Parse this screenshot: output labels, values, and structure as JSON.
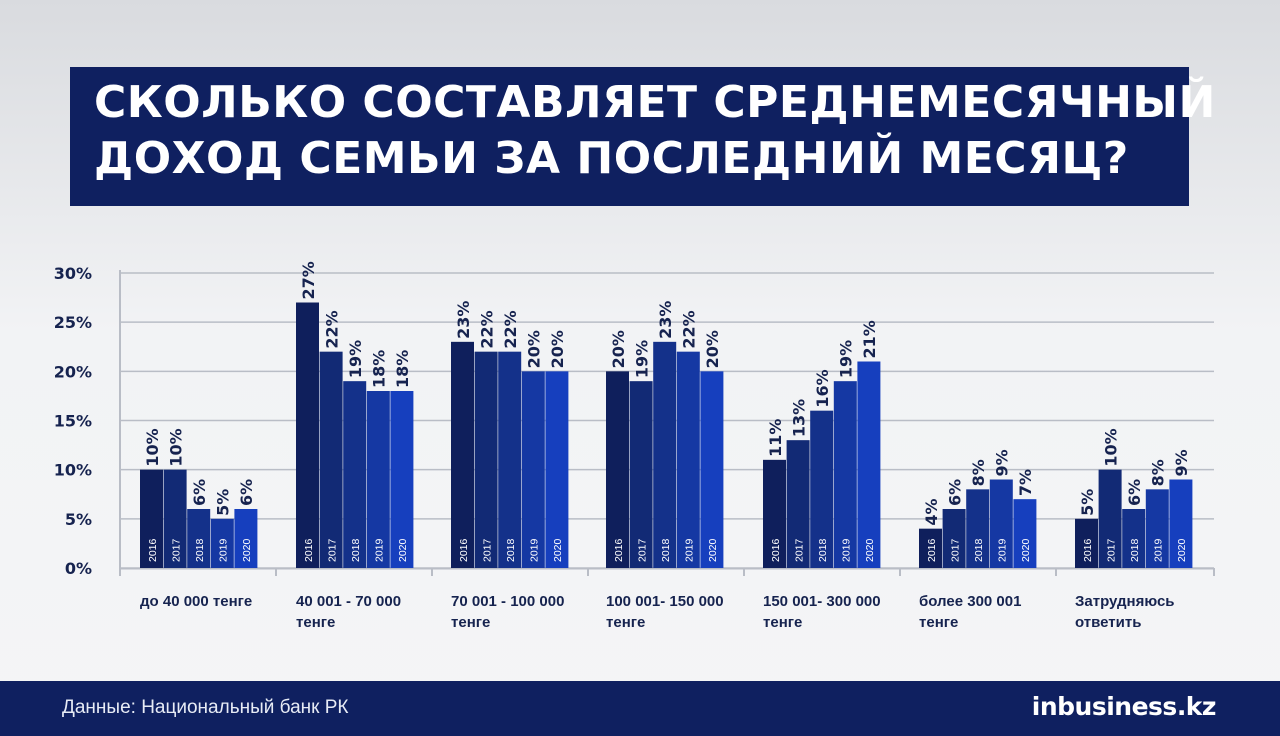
{
  "title": {
    "line1": "СКОЛЬКО СОСТАВЛЯЕТ СРЕДНЕМЕСЯЧНЫЙ",
    "line2": "ДОХОД СЕМЬИ ЗА ПОСЛЕДНИЙ МЕСЯЦ?"
  },
  "footer": {
    "source": "Данные: Национальный банк РК",
    "logo_in": "in",
    "logo_rest": "business.kz"
  },
  "colors": {
    "title_bg": "#0f2060",
    "axis_text": "#16234f",
    "grid": "#b9bdc6",
    "bar_2016": "#0f1f5c",
    "bar_2017": "#122a75",
    "bar_2018": "#14318a",
    "bar_2019": "#1538a3",
    "bar_2020": "#163fbe"
  },
  "chart_data": {
    "type": "bar",
    "ylim": [
      0,
      30
    ],
    "y_ticks": [
      "0%",
      "5%",
      "10%",
      "15%",
      "20%",
      "25%",
      "30%"
    ],
    "grid": true,
    "years": [
      "2016",
      "2017",
      "2018",
      "2019",
      "2020"
    ],
    "categories": [
      {
        "label": [
          "до 40 000 тенге"
        ],
        "values": [
          10,
          10,
          6,
          5,
          6
        ]
      },
      {
        "label": [
          "40 001 - 70 000",
          "тенге"
        ],
        "values": [
          27,
          22,
          19,
          18,
          18
        ]
      },
      {
        "label": [
          "70 001 - 100 000",
          "тенге"
        ],
        "values": [
          23,
          22,
          22,
          20,
          20
        ]
      },
      {
        "label": [
          "100 001- 150 000",
          "тенге"
        ],
        "values": [
          20,
          19,
          23,
          22,
          20
        ]
      },
      {
        "label": [
          "150 001- 300 000",
          "тенге"
        ],
        "values": [
          11,
          13,
          16,
          19,
          21
        ]
      },
      {
        "label": [
          "более 300 001",
          "тенге"
        ],
        "values": [
          4,
          6,
          8,
          9,
          7
        ]
      },
      {
        "label": [
          "Затрудняюсь",
          "ответить"
        ],
        "values": [
          5,
          10,
          6,
          8,
          9
        ]
      }
    ]
  }
}
